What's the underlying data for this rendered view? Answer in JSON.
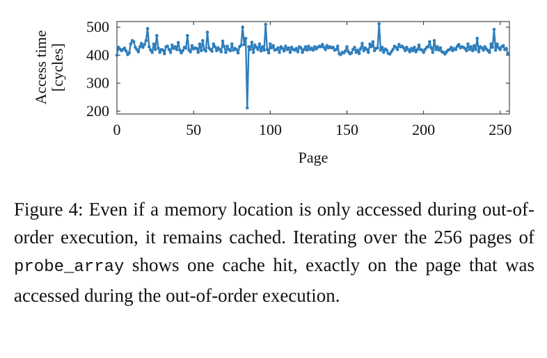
{
  "chart_data": {
    "type": "line",
    "xlabel": "Page",
    "ylabel": [
      "Access time",
      "[cycles]"
    ],
    "xlim": [
      0,
      256
    ],
    "ylim": [
      190,
      520
    ],
    "xticks": [
      0,
      50,
      100,
      150,
      200,
      250
    ],
    "yticks": [
      200,
      300,
      400,
      500
    ],
    "grid": false,
    "color": "#2e7ebc",
    "series": [
      {
        "values": [
          400,
          428,
          422,
          416,
          420,
          425,
          415,
          402,
          408,
          440,
          452,
          448,
          428,
          420,
          412,
          430,
          442,
          428,
          438,
          452,
          495,
          430,
          418,
          410,
          440,
          420,
          470,
          425,
          410,
          420,
          418,
          405,
          430,
          432,
          420,
          410,
          436,
          424,
          430,
          420,
          445,
          418,
          408,
          416,
          428,
          425,
          470,
          418,
          412,
          434,
          422,
          426,
          424,
          410,
          440,
          416,
          452,
          420,
          415,
          482,
          426,
          420,
          414,
          440,
          430,
          416,
          426,
          420,
          412,
          450,
          430,
          410,
          432,
          420,
          416,
          440,
          418,
          424,
          420,
          408,
          430,
          435,
          500,
          438,
          460,
          212,
          430,
          420,
          446,
          410,
          436,
          428,
          420,
          440,
          415,
          430,
          418,
          510,
          420,
          408,
          440,
          426,
          434,
          418,
          420,
          426,
          410,
          430,
          424,
          415,
          432,
          420,
          426,
          410,
          428,
          420,
          418,
          424,
          412,
          430,
          426,
          410,
          420,
          430,
          418,
          432,
          420,
          425,
          418,
          430,
          422,
          428,
          432,
          430,
          438,
          428,
          420,
          434,
          426,
          430,
          426,
          428,
          418,
          420,
          432,
          405,
          402,
          410,
          408,
          415,
          430,
          412,
          405,
          408,
          420,
          428,
          410,
          418,
          406,
          424,
          442,
          416,
          426,
          420,
          410,
          440,
          430,
          448,
          416,
          424,
          426,
          512,
          418,
          428,
          410,
          422,
          418,
          406,
          404,
          412,
          420,
          432,
          428,
          420,
          438,
          430,
          432,
          426,
          416,
          428,
          420,
          412,
          424,
          416,
          428,
          412,
          420,
          436,
          420,
          418,
          410,
          420,
          428,
          430,
          448,
          426,
          410,
          452,
          420,
          430,
          418,
          426,
          412,
          410,
          404,
          412,
          418,
          420,
          428,
          416,
          424,
          420,
          432,
          438,
          426,
          430,
          428,
          424,
          416,
          440,
          420,
          430,
          416,
          434,
          420,
          460,
          412,
          430,
          426,
          418,
          430,
          422,
          416,
          410,
          440,
          428,
          492,
          418,
          440,
          426,
          420,
          430,
          434,
          420,
          424,
          405
        ]
      }
    ]
  },
  "caption": {
    "part1": "Figure 4: Even if a memory location is only accessed during out-of-order execution, it remains cached. Iterating over the 256 pages of ",
    "code": "probe_array",
    "part2": " shows one cache hit, exactly on the page that was accessed during the out-of-order execution."
  }
}
